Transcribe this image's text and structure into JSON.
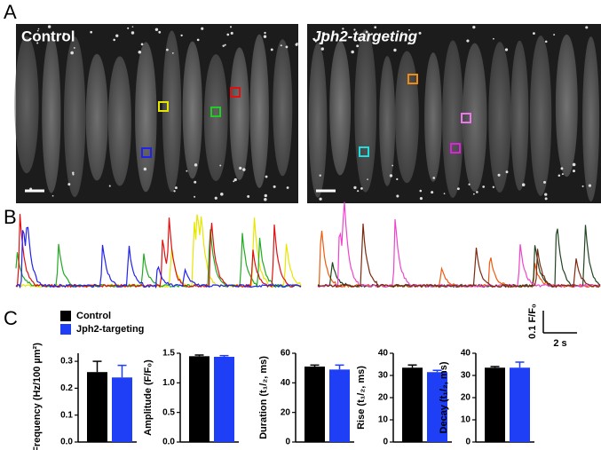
{
  "panel_labels": [
    "A",
    "B",
    "C"
  ],
  "images": {
    "control_label": "Control",
    "jph2_label": "Jph2-targeting"
  },
  "scale_bar": {
    "y_label": "0.1 F/F₀",
    "x_label": "2 s"
  },
  "legend": [
    {
      "name": "Control",
      "color": "#000000"
    },
    {
      "name": "Jph2-targeting",
      "color": "#1e3ff5"
    }
  ],
  "chart_data": [
    {
      "type": "bar",
      "y_label": "Frequency (Hz/100 µm²)",
      "values": [
        0.26,
        0.24
      ],
      "errors": [
        0.04,
        0.045
      ],
      "ylim": [
        0,
        0.33
      ],
      "yticks": [
        {
          "value": 0,
          "label": "0.0"
        },
        0.1,
        0.2,
        0.3
      ]
    },
    {
      "type": "bar",
      "y_label": "Amplitude (F/F₀)",
      "values": [
        1.45,
        1.44
      ],
      "errors": [
        0.02,
        0.02
      ],
      "ylim": [
        0,
        1.5
      ],
      "yticks": [
        {
          "value": 0,
          "label": "0.0"
        },
        0.5,
        {
          "value": 1,
          "label": "1.0"
        },
        1.5
      ]
    },
    {
      "type": "bar",
      "y_label": "Duration (t₁/₂, ms)",
      "values": [
        51,
        49
      ],
      "errors": [
        1,
        3
      ],
      "ylim": [
        0,
        60
      ],
      "yticks": [
        0,
        20,
        40,
        60
      ]
    },
    {
      "type": "bar",
      "y_label": "Rise (t₁/₂, ms)",
      "values": [
        33.5,
        31.5
      ],
      "errors": [
        1.2,
        0.8
      ],
      "ylim": [
        0,
        40
      ],
      "yticks": [
        0,
        10,
        20,
        30,
        40
      ]
    },
    {
      "type": "bar",
      "y_label": "Decay (t₁/₂, ms)",
      "values": [
        33.5,
        33.5
      ],
      "errors": [
        0.5,
        2.5
      ],
      "ylim": [
        0,
        40
      ],
      "yticks": [
        0,
        10,
        20,
        30,
        40
      ]
    }
  ]
}
